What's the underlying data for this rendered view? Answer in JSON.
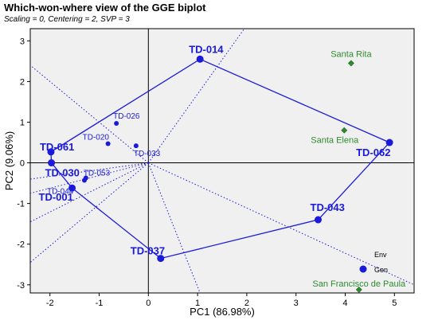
{
  "chart_data": {
    "type": "scatter",
    "title": "Which-won-where view of the GGE biplot",
    "subtitle": "Scaling = 0, Centering = 2, SVP = 3",
    "xlabel": "PC1 (86.98%)",
    "ylabel": "PC2 (9.06%)",
    "xlim": [
      -2.4,
      5.4
    ],
    "ylim": [
      -3.2,
      3.3
    ],
    "xticks": [
      -2,
      -1,
      0,
      1,
      2,
      3,
      4,
      5
    ],
    "yticks": [
      -3,
      -2,
      -1,
      0,
      1,
      2,
      3
    ],
    "grid": false,
    "colors": {
      "genotype": "#1a1adb",
      "environment": "#2e8b2e",
      "background": "#f0f0f0"
    },
    "genotypes": [
      {
        "name": "TD-014",
        "x": 1.05,
        "y": 2.55,
        "vertex": true
      },
      {
        "name": "TD-062",
        "x": 4.9,
        "y": 0.5,
        "vertex": true
      },
      {
        "name": "TD-043",
        "x": 3.45,
        "y": -1.4,
        "vertex": true
      },
      {
        "name": "TD-037",
        "x": 0.25,
        "y": -2.35,
        "vertex": true
      },
      {
        "name": "TD-001",
        "x": -1.55,
        "y": -0.62,
        "vertex": true
      },
      {
        "name": "TD-030",
        "x": -1.97,
        "y": 0.0,
        "vertex": true
      },
      {
        "name": "TD-061",
        "x": -1.98,
        "y": 0.27,
        "vertex": true
      },
      {
        "name": "TD-026",
        "x": -0.65,
        "y": 0.97,
        "vertex": false
      },
      {
        "name": "TD-020",
        "x": -0.82,
        "y": 0.47,
        "vertex": false
      },
      {
        "name": "TD-033",
        "x": -0.25,
        "y": 0.42,
        "vertex": false
      },
      {
        "name": "TD-053",
        "x": -1.27,
        "y": -0.37,
        "vertex": false
      },
      {
        "name": "TD-044",
        "x": -1.3,
        "y": -0.43,
        "vertex": false
      }
    ],
    "environments": [
      {
        "name": "Santa Rita",
        "x": 4.12,
        "y": 2.45
      },
      {
        "name": "Santa Elena",
        "x": 3.98,
        "y": 0.8
      },
      {
        "name": "San Francisco de Paula",
        "x": 4.28,
        "y": -3.12
      }
    ],
    "polygon_order": [
      "TD-014",
      "TD-062",
      "TD-043",
      "TD-037",
      "TD-001",
      "TD-030",
      "TD-061"
    ],
    "rays": [
      {
        "x": 1.95,
        "y": 3.3
      },
      {
        "x": -2.4,
        "y": 2.4
      },
      {
        "x": -2.4,
        "y": -0.4
      },
      {
        "x": -2.4,
        "y": -0.75
      },
      {
        "x": -2.4,
        "y": -1.45
      },
      {
        "x": -2.4,
        "y": -2.45
      },
      {
        "x": 1.05,
        "y": -3.2
      },
      {
        "x": 5.4,
        "y": -3.0
      }
    ],
    "legend": [
      {
        "name": "Env",
        "color": "#000000"
      },
      {
        "name": "Gen",
        "color": "#1a1adb"
      }
    ]
  }
}
